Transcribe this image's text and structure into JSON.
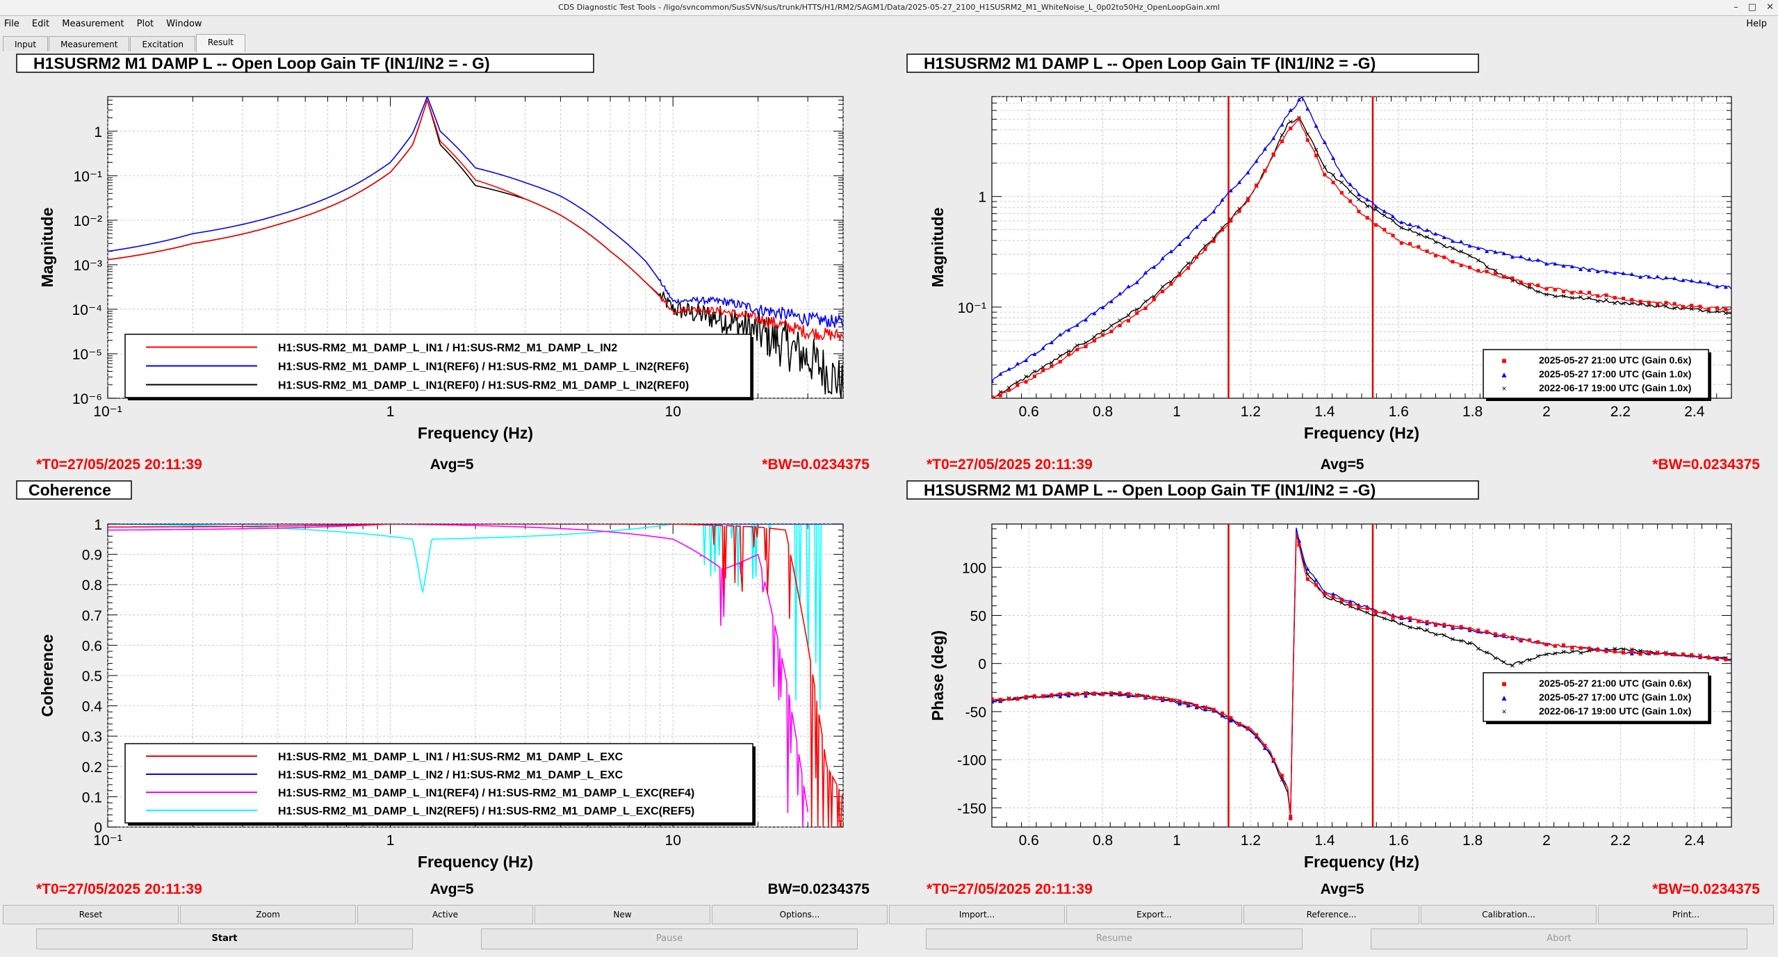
{
  "window": {
    "title": "CDS Diagnostic Test Tools - /ligo/svncommon/SusSVN/sus/trunk/HTTS/H1/RM2/SAGM1/Data/2025-05-27_2100_H1SUSRM2_M1_WhiteNoise_L_0p02to50Hz_OpenLoopGain.xml"
  },
  "menu": {
    "items": [
      "File",
      "Edit",
      "Measurement",
      "Plot",
      "Window"
    ],
    "help": "Help"
  },
  "tabs": [
    "Input",
    "Measurement",
    "Excitation",
    "Result"
  ],
  "colors": {
    "red": "#ff0000",
    "blue": "#0000ff",
    "black": "#000000",
    "magenta": "#ff00ff",
    "cyan": "#00ffff",
    "cursor": "#e00000"
  },
  "panels": {
    "tl": {
      "title": "H1SUSRM2 M1 DAMP L -- Open Loop Gain TF (IN1/IN2 = - G)",
      "ylabel": "Magnitude",
      "xlabel": "Frequency (Hz)",
      "xticks": [
        "10⁻¹",
        "1",
        "10"
      ],
      "yticks": [
        "10⁻⁶",
        "10⁻⁵",
        "10⁻⁴",
        "10⁻³",
        "10⁻²",
        "10⁻¹",
        "1"
      ],
      "legend": [
        {
          "label": "H1:SUS-RM2_M1_DAMP_L_IN1 / H1:SUS-RM2_M1_DAMP_L_IN2",
          "color": "#ff0000"
        },
        {
          "label": "H1:SUS-RM2_M1_DAMP_L_IN1(REF6) / H1:SUS-RM2_M1_DAMP_L_IN2(REF6)",
          "color": "#0000ff"
        },
        {
          "label": "H1:SUS-RM2_M1_DAMP_L_IN1(REF0) / H1:SUS-RM2_M1_DAMP_L_IN2(REF0)",
          "color": "#000000"
        }
      ],
      "footer": {
        "t0": "*T0=27/05/2025 20:11:39",
        "avg": "Avg=5",
        "bw": "*BW=0.0234375",
        "bw_color": "#ff0000"
      }
    },
    "tr": {
      "title": "H1SUSRM2 M1 DAMP L -- Open Loop Gain TF (IN1/IN2 = -G)",
      "ylabel": "Magnitude",
      "xlabel": "Frequency (Hz)",
      "xticks": [
        "0.6",
        "0.8",
        "1",
        "1.2",
        "1.4",
        "1.6",
        "1.8",
        "2",
        "2.2",
        "2.4"
      ],
      "yticks": [
        "10⁻¹",
        "1"
      ],
      "legend": [
        {
          "label": "2025-05-27 21:00 UTC (Gain 0.6x)",
          "color": "#ff0000",
          "marker": "■"
        },
        {
          "label": "2025-05-27 17:00 UTC (Gain 1.0x)",
          "color": "#0000ff",
          "marker": "▲"
        },
        {
          "label": "2022-06-17 19:00 UTC (Gain 1.0x)",
          "color": "#000000",
          "marker": "×"
        }
      ],
      "footer": {
        "t0": "*T0=27/05/2025 20:11:39",
        "avg": "Avg=5",
        "bw": "*BW=0.0234375",
        "bw_color": "#ff0000"
      }
    },
    "bl": {
      "title": "Coherence",
      "ylabel": "Coherence",
      "xlabel": "Frequency (Hz)",
      "xticks": [
        "10⁻¹",
        "1",
        "10"
      ],
      "yticks": [
        "0",
        "0.1",
        "0.2",
        "0.3",
        "0.4",
        "0.5",
        "0.6",
        "0.7",
        "0.8",
        "0.9",
        "1"
      ],
      "legend": [
        {
          "label": "H1:SUS-RM2_M1_DAMP_L_IN1 / H1:SUS-RM2_M1_DAMP_L_EXC",
          "color": "#ff0000"
        },
        {
          "label": "H1:SUS-RM2_M1_DAMP_L_IN2 / H1:SUS-RM2_M1_DAMP_L_EXC",
          "color": "#0000ff"
        },
        {
          "label": "H1:SUS-RM2_M1_DAMP_L_IN1(REF4) / H1:SUS-RM2_M1_DAMP_L_EXC(REF4)",
          "color": "#ff00ff"
        },
        {
          "label": "H1:SUS-RM2_M1_DAMP_L_IN2(REF5) / H1:SUS-RM2_M1_DAMP_L_EXC(REF5)",
          "color": "#00ffff"
        }
      ],
      "footer": {
        "t0": "*T0=27/05/2025 20:11:39",
        "avg": "Avg=5",
        "bw": "BW=0.0234375",
        "bw_color": "#000000"
      }
    },
    "br": {
      "title": "H1SUSRM2 M1 DAMP L -- Open Loop Gain TF (IN1/IN2 = -G)",
      "ylabel": "Phase (deg)",
      "xlabel": "Frequency (Hz)",
      "xticks": [
        "0.6",
        "0.8",
        "1",
        "1.2",
        "1.4",
        "1.6",
        "1.8",
        "2",
        "2.2",
        "2.4"
      ],
      "yticks": [
        "-150",
        "-100",
        "-50",
        "0",
        "50",
        "100"
      ],
      "legend": [
        {
          "label": "2025-05-27 21:00 UTC (Gain 0.6x)",
          "color": "#ff0000",
          "marker": "■"
        },
        {
          "label": "2025-05-27 17:00 UTC (Gain 1.0x)",
          "color": "#0000ff",
          "marker": "▲"
        },
        {
          "label": "2022-06-17 19:00 UTC (Gain 1.0x)",
          "color": "#000000",
          "marker": "×"
        }
      ],
      "footer": {
        "t0": "*T0=27/05/2025 20:11:39",
        "avg": "Avg=5",
        "bw": "*BW=0.0234375",
        "bw_color": "#ff0000"
      }
    }
  },
  "chart_data": [
    {
      "type": "line",
      "panel": "tl",
      "xscale": "log",
      "yscale": "log",
      "xlim": [
        0.1,
        40
      ],
      "ylim": [
        1e-06,
        6
      ],
      "series": [
        {
          "name": "H1:SUS-RM2_M1_DAMP_L_IN1 / H1:SUS-RM2_M1_DAMP_L_IN2",
          "color": "#ff0000",
          "x": [
            0.1,
            0.2,
            0.4,
            0.7,
            1.0,
            1.2,
            1.35,
            1.5,
            2.0,
            3.0,
            4.0,
            6.0,
            8.0,
            10.0,
            12.0,
            15.0,
            20.0,
            30.0,
            40.0
          ],
          "y": [
            0.0013,
            0.003,
            0.008,
            0.03,
            0.12,
            0.5,
            5.0,
            0.6,
            0.08,
            0.03,
            0.013,
            0.002,
            0.0004,
            9e-05,
            0.0001,
            9e-05,
            6e-05,
            3e-05,
            2.5e-05
          ]
        },
        {
          "name": "H1:SUS-RM2_M1_DAMP_L_IN1(REF6) / H1:SUS-RM2_M1_DAMP_L_IN2(REF6)",
          "color": "#0000ff",
          "x": [
            0.1,
            0.2,
            0.4,
            0.7,
            1.0,
            1.2,
            1.35,
            1.5,
            2.0,
            3.0,
            4.0,
            6.0,
            8.0,
            10.0,
            12.0,
            15.0,
            20.0,
            30.0,
            40.0
          ],
          "y": [
            0.002,
            0.005,
            0.013,
            0.05,
            0.2,
            0.9,
            6.0,
            1.0,
            0.15,
            0.07,
            0.035,
            0.006,
            0.0012,
            0.00015,
            0.00016,
            0.00015,
            0.0001,
            6e-05,
            5e-05
          ]
        },
        {
          "name": "H1:SUS-RM2_M1_DAMP_L_IN1(REF0) / H1:SUS-RM2_M1_DAMP_L_IN2(REF0)",
          "color": "#000000",
          "x": [
            0.1,
            0.2,
            0.4,
            0.7,
            1.0,
            1.2,
            1.35,
            1.5,
            2.0,
            3.0,
            4.0,
            6.0,
            8.0,
            10.0,
            12.0,
            15.0,
            20.0,
            30.0,
            40.0
          ],
          "y": [
            0.0013,
            0.003,
            0.008,
            0.03,
            0.12,
            0.5,
            5.0,
            0.5,
            0.06,
            0.03,
            0.013,
            0.002,
            0.0004,
            0.0001,
            8e-05,
            6e-05,
            3e-05,
            8e-06,
            2e-06
          ]
        }
      ]
    },
    {
      "type": "scatter",
      "panel": "tr",
      "xscale": "linear",
      "yscale": "log",
      "xlim": [
        0.5,
        2.5
      ],
      "ylim": [
        0.015,
        8
      ],
      "cursors_x": [
        1.14,
        1.53
      ],
      "series": [
        {
          "name": "2025-05-27 21:00 UTC (Gain 0.6x)",
          "color": "#ff0000",
          "x": [
            0.5,
            0.6,
            0.7,
            0.8,
            0.9,
            1.0,
            1.1,
            1.2,
            1.25,
            1.3,
            1.33,
            1.36,
            1.4,
            1.5,
            1.6,
            1.8,
            2.0,
            2.2,
            2.4,
            2.5
          ],
          "y": [
            0.015,
            0.022,
            0.035,
            0.055,
            0.09,
            0.18,
            0.4,
            1.0,
            2.0,
            4.0,
            5.0,
            3.0,
            1.6,
            0.7,
            0.4,
            0.22,
            0.15,
            0.12,
            0.1,
            0.095
          ]
        },
        {
          "name": "2025-05-27 17:00 UTC (Gain 1.0x)",
          "color": "#0000ff",
          "x": [
            0.5,
            0.6,
            0.7,
            0.8,
            0.9,
            1.0,
            1.1,
            1.2,
            1.25,
            1.3,
            1.34,
            1.38,
            1.45,
            1.5,
            1.6,
            1.8,
            2.0,
            2.2,
            2.4,
            2.5
          ],
          "y": [
            0.022,
            0.035,
            0.06,
            0.1,
            0.18,
            0.35,
            0.75,
            1.8,
            3.0,
            5.5,
            8.0,
            4.0,
            1.5,
            1.0,
            0.6,
            0.35,
            0.25,
            0.2,
            0.17,
            0.15
          ]
        },
        {
          "name": "2022-06-17 19:00 UTC (Gain 1.0x)",
          "color": "#000000",
          "x": [
            0.5,
            0.6,
            0.7,
            0.8,
            0.9,
            1.0,
            1.1,
            1.2,
            1.25,
            1.3,
            1.33,
            1.37,
            1.4,
            1.5,
            1.6,
            1.8,
            1.9,
            2.0,
            2.2,
            2.4,
            2.5
          ],
          "y": [
            0.015,
            0.024,
            0.038,
            0.06,
            0.1,
            0.19,
            0.42,
            1.0,
            2.0,
            4.5,
            5.2,
            3.0,
            1.8,
            0.9,
            0.55,
            0.28,
            0.18,
            0.13,
            0.11,
            0.095,
            0.09
          ]
        }
      ]
    },
    {
      "type": "line",
      "panel": "bl",
      "xscale": "log",
      "yscale": "linear",
      "xlim": [
        0.1,
        40
      ],
      "ylim": [
        0,
        1
      ],
      "series": [
        {
          "name": "H1:SUS-RM2_M1_DAMP_L_IN1 / H1:SUS-RM2_M1_DAMP_L_EXC",
          "color": "#ff0000",
          "x": [
            0.1,
            1,
            10,
            20,
            25,
            30,
            35,
            40
          ],
          "y": [
            0.99,
            1.0,
            1.0,
            0.99,
            0.98,
            0.6,
            0.2,
            0.1
          ]
        },
        {
          "name": "H1:SUS-RM2_M1_DAMP_L_IN2 / H1:SUS-RM2_M1_DAMP_L_EXC",
          "color": "#0000ff",
          "x": [
            0.1,
            1,
            10,
            40
          ],
          "y": [
            1.0,
            1.0,
            1.0,
            1.0
          ]
        },
        {
          "name": "H1:SUS-RM2_M1_DAMP_L_IN1(REF4) / H1:SUS-RM2_M1_DAMP_L_EXC(REF4)",
          "color": "#ff00ff",
          "x": [
            0.1,
            1,
            5,
            10,
            15,
            20,
            25,
            30
          ],
          "y": [
            0.98,
            1.0,
            0.98,
            0.95,
            0.85,
            0.9,
            0.5,
            0.05
          ]
        },
        {
          "name": "H1:SUS-RM2_M1_DAMP_L_IN2(REF5) / H1:SUS-RM2_M1_DAMP_L_EXC(REF5)",
          "color": "#00ffff",
          "x": [
            0.1,
            1.2,
            1.3,
            1.4,
            10,
            40
          ],
          "y": [
            1.0,
            0.95,
            0.77,
            0.95,
            1.0,
            1.0
          ]
        }
      ]
    },
    {
      "type": "scatter",
      "panel": "br",
      "xscale": "linear",
      "yscale": "linear",
      "xlim": [
        0.5,
        2.5
      ],
      "ylim": [
        -170,
        145
      ],
      "cursors_x": [
        1.14,
        1.53
      ],
      "series": [
        {
          "name": "2025-05-27 21:00 UTC (Gain 0.6x)",
          "color": "#ff0000",
          "x": [
            0.5,
            0.6,
            0.7,
            0.8,
            0.9,
            1.0,
            1.1,
            1.2,
            1.25,
            1.3,
            1.31,
            1.32,
            1.35,
            1.4,
            1.5,
            1.6,
            1.8,
            2.0,
            2.2,
            2.4,
            2.5
          ],
          "y": [
            -38,
            -35,
            -32,
            -31,
            -33,
            -38,
            -48,
            -68,
            -90,
            -130,
            -170,
            140,
            90,
            72,
            58,
            48,
            35,
            20,
            12,
            8,
            3
          ]
        },
        {
          "name": "2025-05-27 17:00 UTC (Gain 1.0x)",
          "color": "#0000ff",
          "x": [
            0.5,
            0.6,
            0.7,
            0.8,
            0.9,
            1.0,
            1.1,
            1.2,
            1.25,
            1.3,
            1.31,
            1.32,
            1.35,
            1.4,
            1.5,
            1.6,
            1.8,
            2.0,
            2.2,
            2.4,
            2.5
          ],
          "y": [
            -39,
            -35,
            -33,
            -32,
            -34,
            -40,
            -50,
            -70,
            -92,
            -130,
            -168,
            145,
            100,
            75,
            60,
            48,
            34,
            20,
            12,
            8,
            4
          ]
        },
        {
          "name": "2022-06-17 19:00 UTC (Gain 1.0x)",
          "color": "#000000",
          "x": [
            0.5,
            0.6,
            0.7,
            0.8,
            0.9,
            1.0,
            1.1,
            1.2,
            1.25,
            1.3,
            1.31,
            1.32,
            1.35,
            1.4,
            1.5,
            1.6,
            1.8,
            1.9,
            2.0,
            2.2,
            2.4,
            2.5
          ],
          "y": [
            -39,
            -35,
            -32,
            -31,
            -33,
            -39,
            -48,
            -70,
            -92,
            -135,
            -165,
            140,
            95,
            70,
            55,
            42,
            20,
            -2,
            10,
            15,
            8,
            5
          ]
        }
      ]
    }
  ],
  "buttons_row1": [
    "Reset",
    "Zoom",
    "Active",
    "New",
    "Options...",
    "Import...",
    "Export...",
    "Reference...",
    "Calibration...",
    "Print..."
  ],
  "buttons_row2": [
    {
      "label": "Start",
      "enabled": true
    },
    {
      "label": "Pause",
      "enabled": false
    },
    {
      "label": "Resume",
      "enabled": false
    },
    {
      "label": "Abort",
      "enabled": false
    }
  ]
}
